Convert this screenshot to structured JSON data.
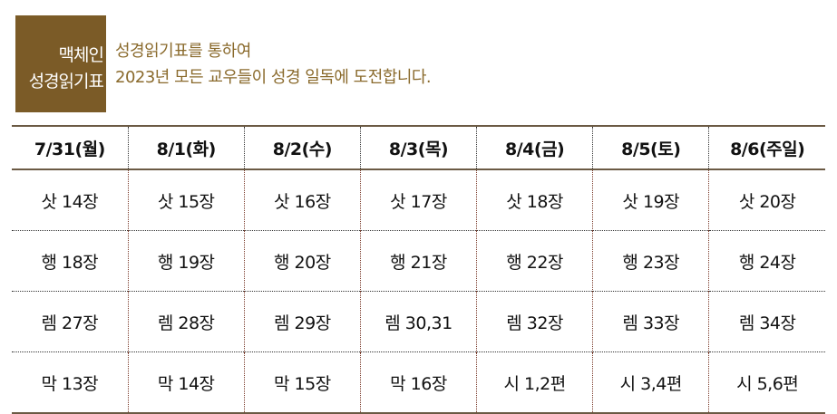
{
  "logo": {
    "line1": "맥체인",
    "line2": "성경읽기표"
  },
  "intro": {
    "line1": "성경읽기표를 통하여",
    "line2": "2023년 모든 교우들이 성경 일독에 도전합니다."
  },
  "colors": {
    "logo_bg": "#7b5b27",
    "intro_text": "#8a6a2c"
  },
  "table": {
    "headers": [
      "7/31(월)",
      "8/1(화)",
      "8/2(수)",
      "8/3(목)",
      "8/4(금)",
      "8/5(토)",
      "8/6(주일)"
    ],
    "rows": [
      [
        "삿 14장",
        "삿 15장",
        "삿 16장",
        "삿 17장",
        "삿 18장",
        "삿 19장",
        "삿 20장"
      ],
      [
        "행 18장",
        "행 19장",
        "행 20장",
        "행 21장",
        "행 22장",
        "행 23장",
        "행 24장"
      ],
      [
        "렘 27장",
        "렘 28장",
        "렘 29장",
        "렘 30,31",
        "렘 32장",
        "렘 33장",
        "렘 34장"
      ],
      [
        "막 13장",
        "막 14장",
        "막 15장",
        "막 16장",
        "시 1,2편",
        "시 3,4편",
        "시 5,6편"
      ]
    ]
  }
}
